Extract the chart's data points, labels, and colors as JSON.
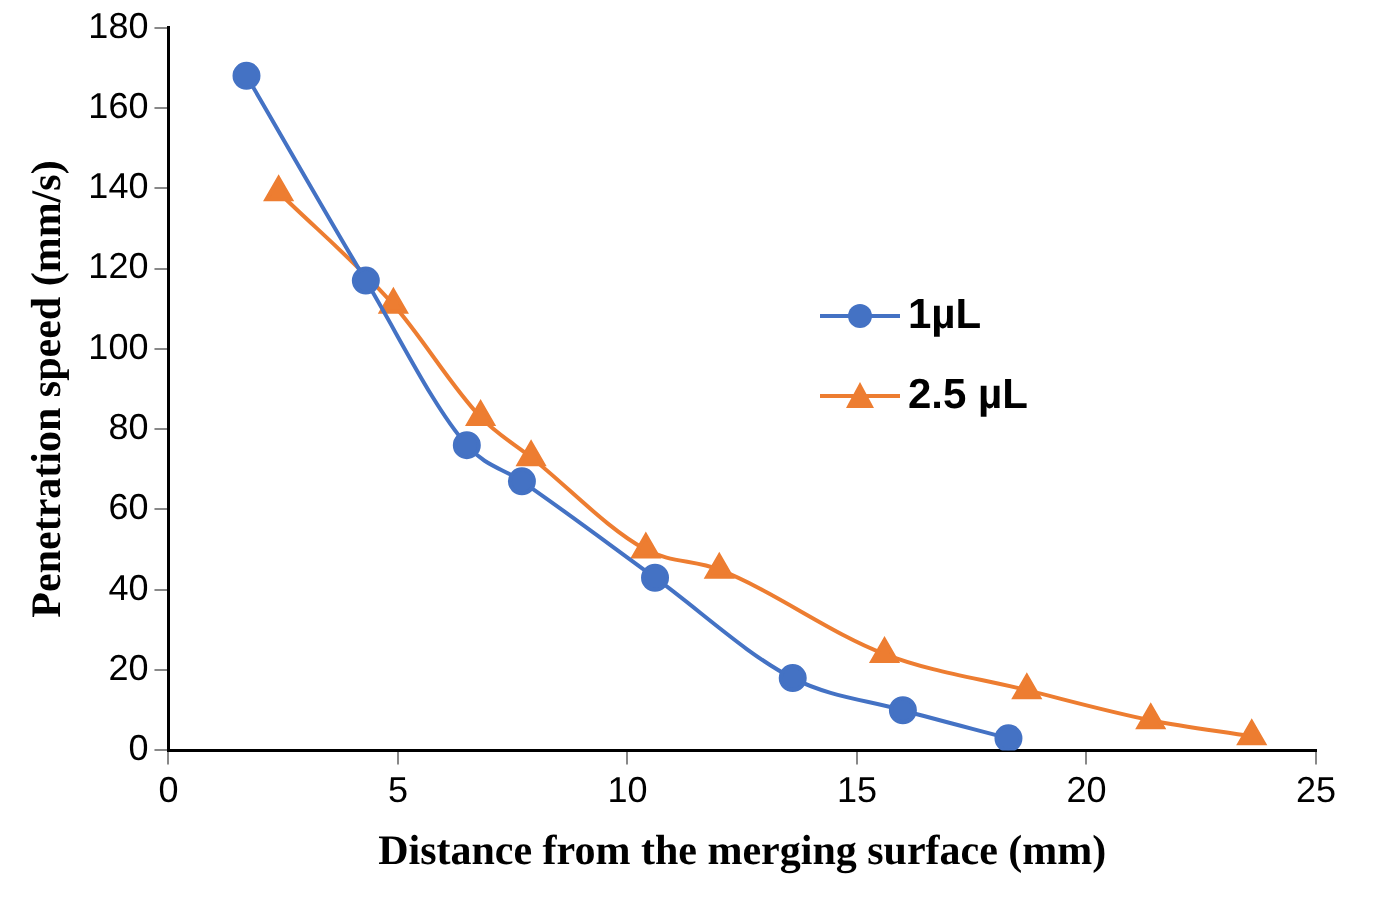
{
  "chart_data": {
    "type": "line",
    "xlabel": "Distance from the merging surface (mm)",
    "ylabel": "Penetration speed (mm/s)",
    "xlim": [
      0,
      25
    ],
    "xticks": [
      0,
      5,
      10,
      15,
      20,
      25
    ],
    "ylim": [
      0,
      180
    ],
    "yticks": [
      0,
      20,
      40,
      60,
      80,
      100,
      120,
      140,
      160,
      180
    ],
    "grid": false,
    "legend": "right",
    "series": [
      {
        "name": "1µL",
        "color": "#4472c4",
        "marker": "circle",
        "x": [
          1.7,
          4.3,
          6.5,
          7.7,
          10.6,
          13.6,
          16.0,
          18.3
        ],
        "values": [
          168,
          117,
          76,
          67,
          43,
          18,
          10,
          3
        ]
      },
      {
        "name": "2.5 µL",
        "color": "#ed7d31",
        "marker": "triangle",
        "x": [
          2.4,
          4.9,
          6.8,
          7.9,
          10.4,
          12.0,
          15.6,
          18.7,
          21.4,
          23.6
        ],
        "values": [
          139,
          111,
          83,
          73,
          50,
          45,
          24,
          15,
          7.5,
          3.5
        ]
      }
    ]
  }
}
